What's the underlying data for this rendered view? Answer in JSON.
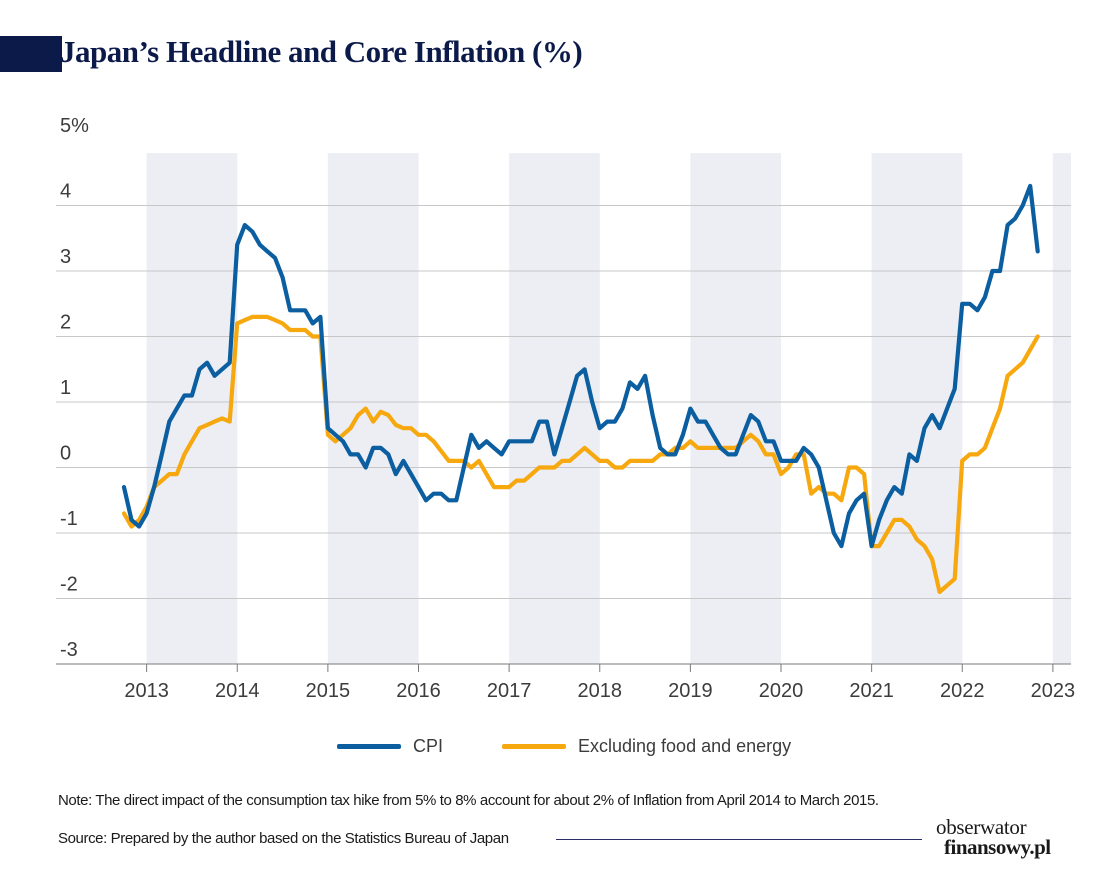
{
  "header": {
    "title": "Japan’s Headline and Core Inflation (%)"
  },
  "footer": {
    "note": "Note: The direct impact of the consumption tax hike from 5% to 8% account for about 2% of Inflation from April 2014 to March 2015.",
    "source": "Source: Prepared by the author based on the Statistics Bureau of Japan",
    "logo_top": "obserwator",
    "logo_bottom": "finansowy.pl"
  },
  "colors": {
    "cpi": "#0b5ea0",
    "core": "#f7a80f",
    "band": "#eceef4",
    "grid": "#c7c7c7",
    "title": "#0c1a4a"
  },
  "chart_data": {
    "type": "line",
    "title": "Japan’s Headline and Core Inflation (%)",
    "xlabel": "",
    "ylabel": "",
    "xlim": [
      2012.0,
      2023.2
    ],
    "ylim": [
      -3,
      5
    ],
    "x_ticks": [
      "2013",
      "2014",
      "2015",
      "2016",
      "2017",
      "2018",
      "2019",
      "2020",
      "2021",
      "2022",
      "2023"
    ],
    "y_ticks": [
      {
        "value": 5,
        "label": "5%"
      },
      {
        "value": 4,
        "label": "4"
      },
      {
        "value": 3,
        "label": "3"
      },
      {
        "value": 2,
        "label": "2"
      },
      {
        "value": 1,
        "label": "1"
      },
      {
        "value": 0,
        "label": "0"
      },
      {
        "value": -1,
        "label": "-1"
      },
      {
        "value": -2,
        "label": "-2"
      },
      {
        "value": -3,
        "label": "-3"
      }
    ],
    "shaded_years": [
      [
        2013,
        2014
      ],
      [
        2015,
        2016
      ],
      [
        2017,
        2018
      ],
      [
        2019,
        2020
      ],
      [
        2021,
        2022
      ],
      [
        2023,
        2023.2
      ]
    ],
    "grid": true,
    "legend_position": "bottom",
    "series": [
      {
        "name": "CPI",
        "color": "#0b5ea0",
        "x": [
          2012.75,
          2012.833,
          2012.917,
          2013.0,
          2013.083,
          2013.167,
          2013.25,
          2013.333,
          2013.417,
          2013.5,
          2013.583,
          2013.667,
          2013.75,
          2013.833,
          2013.917,
          2014.0,
          2014.083,
          2014.167,
          2014.25,
          2014.333,
          2014.417,
          2014.5,
          2014.583,
          2014.667,
          2014.75,
          2014.833,
          2014.917,
          2015.0,
          2015.083,
          2015.167,
          2015.25,
          2015.333,
          2015.417,
          2015.5,
          2015.583,
          2015.667,
          2015.75,
          2015.833,
          2015.917,
          2016.0,
          2016.083,
          2016.167,
          2016.25,
          2016.333,
          2016.417,
          2016.5,
          2016.583,
          2016.667,
          2016.75,
          2016.833,
          2016.917,
          2017.0,
          2017.083,
          2017.167,
          2017.25,
          2017.333,
          2017.417,
          2017.5,
          2017.583,
          2017.667,
          2017.75,
          2017.833,
          2017.917,
          2018.0,
          2018.083,
          2018.167,
          2018.25,
          2018.333,
          2018.417,
          2018.5,
          2018.583,
          2018.667,
          2018.75,
          2018.833,
          2018.917,
          2019.0,
          2019.083,
          2019.167,
          2019.25,
          2019.333,
          2019.417,
          2019.5,
          2019.583,
          2019.667,
          2019.75,
          2019.833,
          2019.917,
          2020.0,
          2020.083,
          2020.167,
          2020.25,
          2020.333,
          2020.417,
          2020.5,
          2020.583,
          2020.667,
          2020.75,
          2020.833,
          2020.917,
          2021.0,
          2021.083,
          2021.167,
          2021.25,
          2021.333,
          2021.417,
          2021.5,
          2021.583,
          2021.667,
          2021.75,
          2021.833,
          2021.917,
          2022.0,
          2022.083,
          2022.167,
          2022.25,
          2022.333,
          2022.417,
          2022.5,
          2022.583,
          2022.667,
          2022.75,
          2022.833
        ],
        "values": [
          -0.3,
          -0.8,
          -0.9,
          -0.7,
          -0.3,
          0.2,
          0.7,
          0.9,
          1.1,
          1.1,
          1.5,
          1.6,
          1.4,
          1.5,
          1.6,
          3.4,
          3.7,
          3.6,
          3.4,
          3.3,
          3.2,
          2.9,
          2.4,
          2.4,
          2.4,
          2.2,
          2.3,
          0.6,
          0.5,
          0.4,
          0.2,
          0.2,
          0.0,
          0.3,
          0.3,
          0.2,
          -0.1,
          0.1,
          -0.1,
          -0.3,
          -0.5,
          -0.4,
          -0.4,
          -0.5,
          -0.5,
          0.0,
          0.5,
          0.3,
          0.4,
          0.3,
          0.2,
          0.4,
          0.4,
          0.4,
          0.4,
          0.7,
          0.7,
          0.2,
          0.6,
          1.0,
          1.4,
          1.5,
          1.0,
          0.6,
          0.7,
          0.7,
          0.9,
          1.3,
          1.2,
          1.4,
          0.8,
          0.3,
          0.2,
          0.2,
          0.5,
          0.9,
          0.7,
          0.7,
          0.5,
          0.3,
          0.2,
          0.2,
          0.5,
          0.8,
          0.7,
          0.4,
          0.4,
          0.1,
          0.1,
          0.1,
          0.3,
          0.2,
          0.0,
          -0.5,
          -1.0,
          -1.2,
          -0.7,
          -0.5,
          -0.4,
          -1.2,
          -0.8,
          -0.5,
          -0.3,
          -0.4,
          0.2,
          0.1,
          0.6,
          0.8,
          0.6,
          0.9,
          1.2,
          2.5,
          2.5,
          2.4,
          2.6,
          3.0,
          3.0,
          3.7,
          3.8,
          4.0,
          4.3,
          3.3
        ]
      },
      {
        "name": "Excluding food and energy",
        "color": "#f7a80f",
        "x": [
          2012.75,
          2012.833,
          2012.917,
          2013.0,
          2013.083,
          2013.167,
          2013.25,
          2013.333,
          2013.417,
          2013.5,
          2013.583,
          2013.667,
          2013.75,
          2013.833,
          2013.917,
          2014.0,
          2014.083,
          2014.167,
          2014.25,
          2014.333,
          2014.417,
          2014.5,
          2014.583,
          2014.667,
          2014.75,
          2014.833,
          2014.917,
          2015.0,
          2015.083,
          2015.167,
          2015.25,
          2015.333,
          2015.417,
          2015.5,
          2015.583,
          2015.667,
          2015.75,
          2015.833,
          2015.917,
          2016.0,
          2016.083,
          2016.167,
          2016.25,
          2016.333,
          2016.417,
          2016.5,
          2016.583,
          2016.667,
          2016.75,
          2016.833,
          2016.917,
          2017.0,
          2017.083,
          2017.167,
          2017.25,
          2017.333,
          2017.417,
          2017.5,
          2017.583,
          2017.667,
          2017.75,
          2017.833,
          2017.917,
          2018.0,
          2018.083,
          2018.167,
          2018.25,
          2018.333,
          2018.417,
          2018.5,
          2018.583,
          2018.667,
          2018.75,
          2018.833,
          2018.917,
          2019.0,
          2019.083,
          2019.167,
          2019.25,
          2019.333,
          2019.417,
          2019.5,
          2019.583,
          2019.667,
          2019.75,
          2019.833,
          2019.917,
          2020.0,
          2020.083,
          2020.167,
          2020.25,
          2020.333,
          2020.417,
          2020.5,
          2020.583,
          2020.667,
          2020.75,
          2020.833,
          2020.917,
          2021.0,
          2021.083,
          2021.167,
          2021.25,
          2021.333,
          2021.417,
          2021.5,
          2021.583,
          2021.667,
          2021.75,
          2021.833,
          2021.917,
          2022.0,
          2022.083,
          2022.167,
          2022.25,
          2022.333,
          2022.417,
          2022.5,
          2022.583,
          2022.667,
          2022.75,
          2022.833
        ],
        "values": [
          -0.7,
          -0.9,
          -0.8,
          -0.6,
          -0.3,
          -0.2,
          -0.1,
          -0.1,
          0.2,
          0.4,
          0.6,
          0.65,
          0.7,
          0.75,
          0.7,
          2.2,
          2.25,
          2.3,
          2.3,
          2.3,
          2.25,
          2.2,
          2.1,
          2.1,
          2.1,
          2.0,
          2.0,
          0.5,
          0.4,
          0.5,
          0.6,
          0.8,
          0.9,
          0.7,
          0.85,
          0.8,
          0.65,
          0.6,
          0.6,
          0.5,
          0.5,
          0.4,
          0.25,
          0.1,
          0.1,
          0.1,
          0.0,
          0.1,
          -0.1,
          -0.3,
          -0.3,
          -0.3,
          -0.2,
          -0.2,
          -0.1,
          0.0,
          0.0,
          0.0,
          0.1,
          0.1,
          0.2,
          0.3,
          0.2,
          0.1,
          0.1,
          0.0,
          0.0,
          0.1,
          0.1,
          0.1,
          0.1,
          0.2,
          0.2,
          0.3,
          0.3,
          0.4,
          0.3,
          0.3,
          0.3,
          0.3,
          0.3,
          0.3,
          0.4,
          0.5,
          0.4,
          0.2,
          0.2,
          -0.1,
          0.0,
          0.2,
          0.2,
          -0.4,
          -0.3,
          -0.4,
          -0.4,
          -0.5,
          0.0,
          0.0,
          -0.1,
          -1.2,
          -1.2,
          -1.0,
          -0.8,
          -0.8,
          -0.9,
          -1.1,
          -1.2,
          -1.4,
          -1.9,
          -1.8,
          -1.7,
          0.1,
          0.2,
          0.2,
          0.3,
          0.6,
          0.9,
          1.4,
          1.5,
          1.6,
          1.8,
          2.0
        ]
      }
    ]
  }
}
